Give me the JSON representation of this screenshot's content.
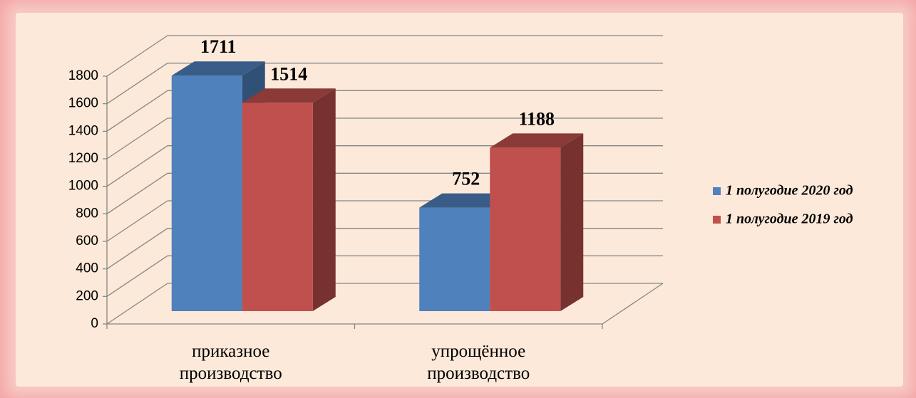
{
  "chart_data": {
    "type": "bar3d",
    "categories": [
      "приказное производство",
      "упрощённое производство"
    ],
    "series": [
      {
        "name": "1 полугодие 2020 год",
        "color": "#4f81bd",
        "values": [
          1711,
          752
        ]
      },
      {
        "name": "1 полугодие 2019 год",
        "color": "#c0504d",
        "values": [
          1514,
          1188
        ]
      }
    ],
    "ylim": [
      0,
      1800
    ],
    "yticks": [
      0,
      200,
      400,
      600,
      800,
      1000,
      1200,
      1400,
      1600,
      1800
    ],
    "grid": true,
    "legend": "right"
  }
}
